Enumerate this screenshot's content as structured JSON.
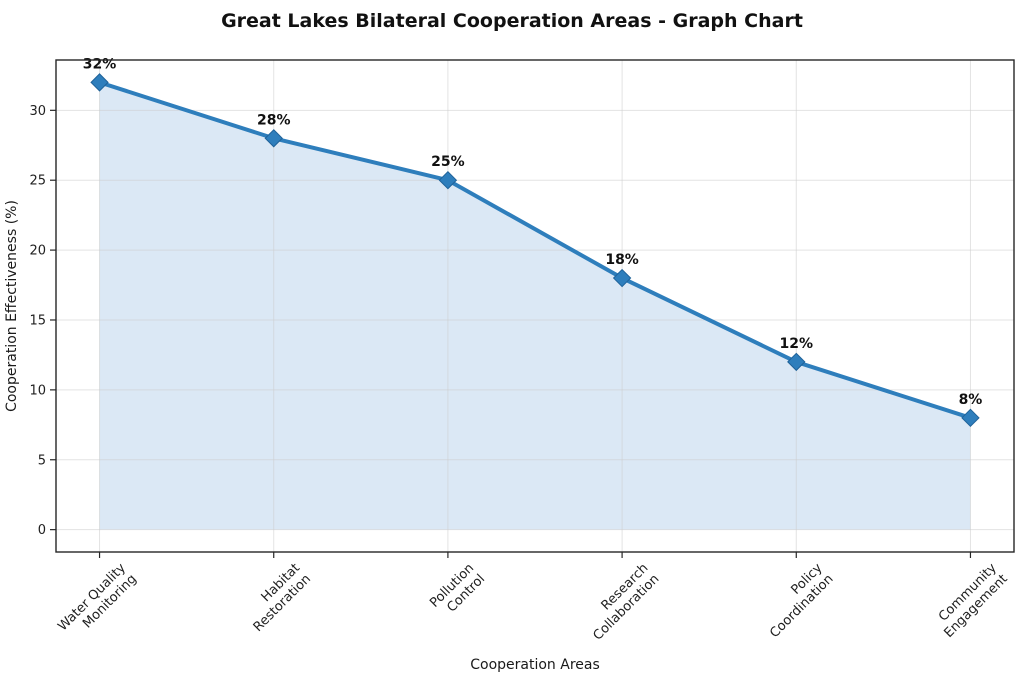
{
  "chart_data": {
    "type": "line",
    "title": "Great Lakes Bilateral Cooperation Areas - Graph Chart",
    "xlabel": "Cooperation Areas",
    "ylabel": "Cooperation Effectiveness (%)",
    "categories": [
      "Water Quality\nMonitoring",
      "Habitat\nRestoration",
      "Pollution\nControl",
      "Research\nCollaboration",
      "Policy\nCoordination",
      "Community\nEngagement"
    ],
    "values": [
      32,
      28,
      25,
      18,
      12,
      8
    ],
    "point_labels": [
      "32%",
      "28%",
      "25%",
      "18%",
      "12%",
      "8%"
    ],
    "yticks": [
      0,
      5,
      10,
      15,
      20,
      25,
      30
    ],
    "ylim": [
      -1.6,
      33.6
    ],
    "xlim": [
      -0.25,
      5.25
    ],
    "grid": true,
    "legend": false,
    "marker": "diamond",
    "area_fill": true,
    "colors": {
      "line": "#2E7EBC",
      "marker": "#2E7EBC",
      "marker_edge": "#1F6299",
      "area": "#DBE8F5",
      "grid": "#CCCCCC",
      "axis": "#262626",
      "text": "#1A1A1A"
    }
  }
}
